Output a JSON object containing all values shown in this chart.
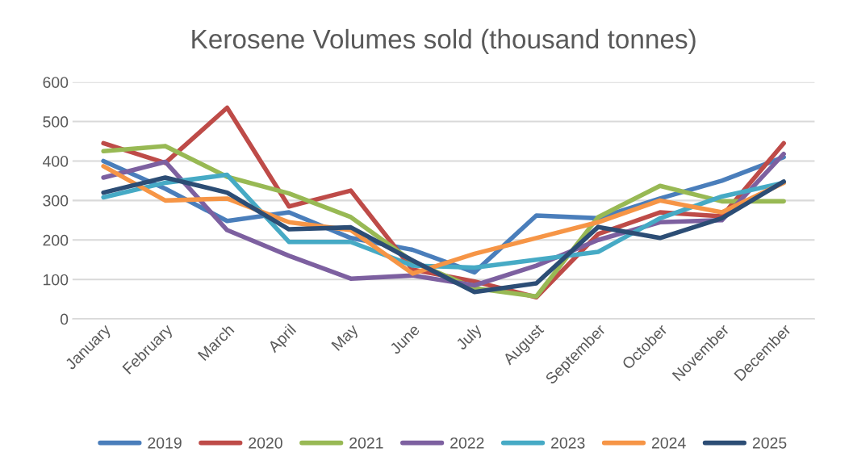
{
  "chart_data": {
    "type": "line",
    "title": "Kerosene Volumes sold (thousand tonnes)",
    "categories": [
      "January",
      "February",
      "March",
      "April",
      "May",
      "June",
      "July",
      "August",
      "September",
      "October",
      "November",
      "December"
    ],
    "series": [
      {
        "name": "2019",
        "color": "#4a7ebb",
        "values": [
          400,
          330,
          248,
          270,
          205,
          175,
          118,
          262,
          255,
          305,
          350,
          410
        ]
      },
      {
        "name": "2020",
        "color": "#be4b48",
        "values": [
          445,
          395,
          535,
          285,
          325,
          125,
          95,
          55,
          215,
          270,
          260,
          445
        ]
      },
      {
        "name": "2021",
        "color": "#98b954",
        "values": [
          425,
          438,
          360,
          318,
          258,
          145,
          78,
          57,
          258,
          337,
          298,
          298
        ]
      },
      {
        "name": "2022",
        "color": "#7d60a0",
        "values": [
          358,
          398,
          225,
          160,
          102,
          110,
          85,
          135,
          200,
          245,
          250,
          418
        ]
      },
      {
        "name": "2023",
        "color": "#46aac5",
        "values": [
          308,
          345,
          365,
          195,
          195,
          135,
          130,
          150,
          170,
          255,
          310,
          345
        ]
      },
      {
        "name": "2024",
        "color": "#f69546",
        "values": [
          387,
          300,
          305,
          245,
          225,
          115,
          165,
          205,
          245,
          300,
          270,
          345
        ]
      },
      {
        "name": "2025",
        "color": "#2c4d75",
        "values": [
          320,
          358,
          320,
          227,
          232,
          148,
          68,
          90,
          233,
          205,
          255,
          348
        ]
      }
    ],
    "ylim": [
      0,
      600
    ],
    "yticks": [
      0,
      100,
      200,
      300,
      400,
      500,
      600
    ],
    "grid": "y",
    "legend": "bottom",
    "marker": "none",
    "line_style": "solid"
  }
}
